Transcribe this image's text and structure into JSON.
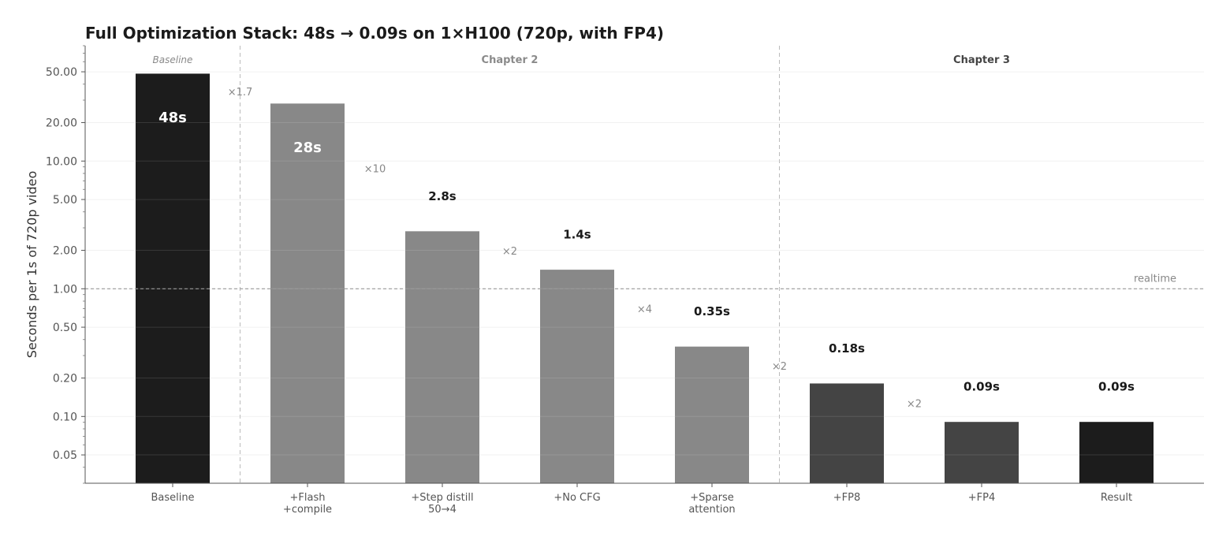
{
  "chart_data": {
    "type": "bar",
    "title": "Full Optimization Stack: 48s → 0.09s on 1×H100 (720p, with FP4)",
    "ylabel": "Seconds per 1s of 720p video",
    "yscale": "log",
    "ylim": [
      0.03,
      80
    ],
    "yticks": [
      {
        "value": 0.05,
        "label": "0.05"
      },
      {
        "value": 0.1,
        "label": "0.10"
      },
      {
        "value": 0.2,
        "label": "0.20"
      },
      {
        "value": 0.5,
        "label": "0.50"
      },
      {
        "value": 1,
        "label": "1.00"
      },
      {
        "value": 2,
        "label": "2.00"
      },
      {
        "value": 5,
        "label": "5.00"
      },
      {
        "value": 10,
        "label": "10.00"
      },
      {
        "value": 20,
        "label": "20.00"
      },
      {
        "value": 50,
        "label": "50.00"
      }
    ],
    "bars": [
      {
        "category": [
          "Baseline"
        ],
        "value": 48,
        "label": "48s",
        "label_position": "inside",
        "color": "#1c1c1c"
      },
      {
        "category": [
          "+Flash",
          "+compile"
        ],
        "value": 28,
        "label": "28s",
        "label_position": "inside",
        "color": "#888888"
      },
      {
        "category": [
          "+Step distill",
          "50→4"
        ],
        "value": 2.8,
        "label": "2.8s",
        "label_position": "above",
        "color": "#888888"
      },
      {
        "category": [
          "+No CFG"
        ],
        "value": 1.4,
        "label": "1.4s",
        "label_position": "above",
        "color": "#888888"
      },
      {
        "category": [
          "+Sparse",
          "attention"
        ],
        "value": 0.35,
        "label": "0.35s",
        "label_position": "above",
        "color": "#888888"
      },
      {
        "category": [
          "+FP8"
        ],
        "value": 0.18,
        "label": "0.18s",
        "label_position": "above",
        "color": "#444444"
      },
      {
        "category": [
          "+FP4"
        ],
        "value": 0.09,
        "label": "0.09s",
        "label_position": "above",
        "color": "#444444"
      },
      {
        "category": [
          "Result"
        ],
        "value": 0.09,
        "label": "0.09s",
        "label_position": "above",
        "color": "#1c1c1c"
      }
    ],
    "factors": [
      {
        "label": "×1.7",
        "after_bar": 0,
        "value": 35
      },
      {
        "label": "×10",
        "after_bar": 1,
        "value": 8.8
      },
      {
        "label": "×2",
        "after_bar": 2,
        "value": 1.98
      },
      {
        "label": "×4",
        "after_bar": 3,
        "value": 0.7
      },
      {
        "label": "×2",
        "after_bar": 4,
        "value": 0.25
      },
      {
        "label": "×2",
        "after_bar": 5,
        "value": 0.127
      }
    ],
    "reference_line": {
      "value": 1,
      "label": "realtime"
    },
    "sections": [
      {
        "label": "Baseline",
        "start_bar": 0,
        "end_bar": 0,
        "style": "italic",
        "color": "#8a8a8a"
      },
      {
        "label": "Chapter 2",
        "start_bar": 1,
        "end_bar": 4,
        "style": "bold",
        "color": "#8a8a8a"
      },
      {
        "label": "Chapter 3",
        "start_bar": 5,
        "end_bar": 7,
        "style": "bold",
        "color": "#444444"
      }
    ],
    "grid": "horizontal"
  }
}
